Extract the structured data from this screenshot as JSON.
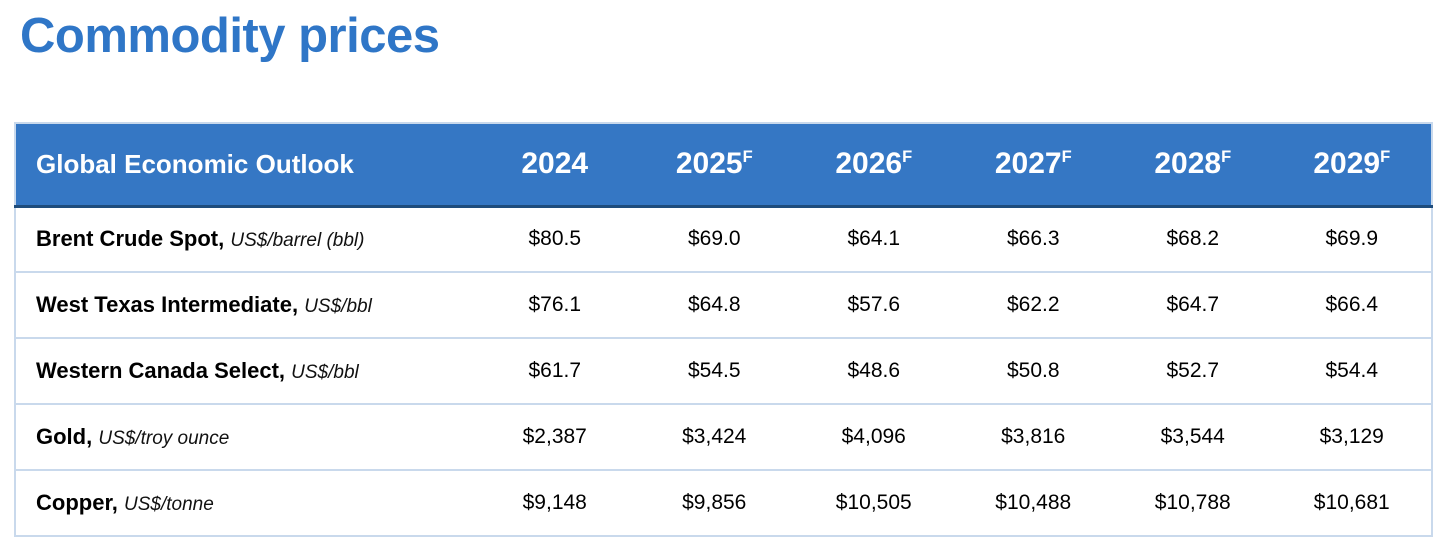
{
  "page": {
    "title": "Commodity prices"
  },
  "colors": {
    "title_blue": "#2F76C7",
    "header_bg": "#3577C4",
    "header_text": "#FFFFFF",
    "row_border": "#C9D9EC",
    "header_bottom_border": "#1E4C7C"
  },
  "table": {
    "header": {
      "label": "Global Economic Outlook",
      "years": [
        {
          "label": "2024",
          "sup": ""
        },
        {
          "label": "2025",
          "sup": "F"
        },
        {
          "label": "2026",
          "sup": "F"
        },
        {
          "label": "2027",
          "sup": "F"
        },
        {
          "label": "2028",
          "sup": "F"
        },
        {
          "label": "2029",
          "sup": "F"
        }
      ]
    },
    "rows": [
      {
        "name": "Brent Crude Spot,",
        "unit": "US$/barrel (bbl)",
        "values": [
          "$80.5",
          "$69.0",
          "$64.1",
          "$66.3",
          "$68.2",
          "$69.9"
        ]
      },
      {
        "name": "West Texas Intermediate,",
        "unit": "US$/bbl",
        "values": [
          "$76.1",
          "$64.8",
          "$57.6",
          "$62.2",
          "$64.7",
          "$66.4"
        ]
      },
      {
        "name": "Western Canada Select,",
        "unit": "US$/bbl",
        "values": [
          "$61.7",
          "$54.5",
          "$48.6",
          "$50.8",
          "$52.7",
          "$54.4"
        ]
      },
      {
        "name": "Gold,",
        "unit": "US$/troy ounce",
        "values": [
          "$2,387",
          "$3,424",
          "$4,096",
          "$3,816",
          "$3,544",
          "$3,129"
        ]
      },
      {
        "name": "Copper,",
        "unit": "US$/tonne",
        "values": [
          "$9,148",
          "$9,856",
          "$10,505",
          "$10,488",
          "$10,788",
          "$10,681"
        ]
      }
    ]
  },
  "chart_data": {
    "type": "table",
    "title": "Commodity prices",
    "header_label": "Global Economic Outlook",
    "columns": [
      "2024",
      "2025F",
      "2026F",
      "2027F",
      "2028F",
      "2029F"
    ],
    "rows": [
      {
        "name": "Brent Crude Spot",
        "unit": "US$/barrel (bbl)",
        "values": [
          80.5,
          69.0,
          64.1,
          66.3,
          68.2,
          69.9
        ]
      },
      {
        "name": "West Texas Intermediate",
        "unit": "US$/bbl",
        "values": [
          76.1,
          64.8,
          57.6,
          62.2,
          64.7,
          66.4
        ]
      },
      {
        "name": "Western Canada Select",
        "unit": "US$/bbl",
        "values": [
          61.7,
          54.5,
          48.6,
          50.8,
          52.7,
          54.4
        ]
      },
      {
        "name": "Gold",
        "unit": "US$/troy ounce",
        "values": [
          2387,
          3424,
          4096,
          3816,
          3544,
          3129
        ]
      },
      {
        "name": "Copper",
        "unit": "US$/tonne",
        "values": [
          9148,
          9856,
          10505,
          10488,
          10788,
          10681
        ]
      }
    ]
  }
}
